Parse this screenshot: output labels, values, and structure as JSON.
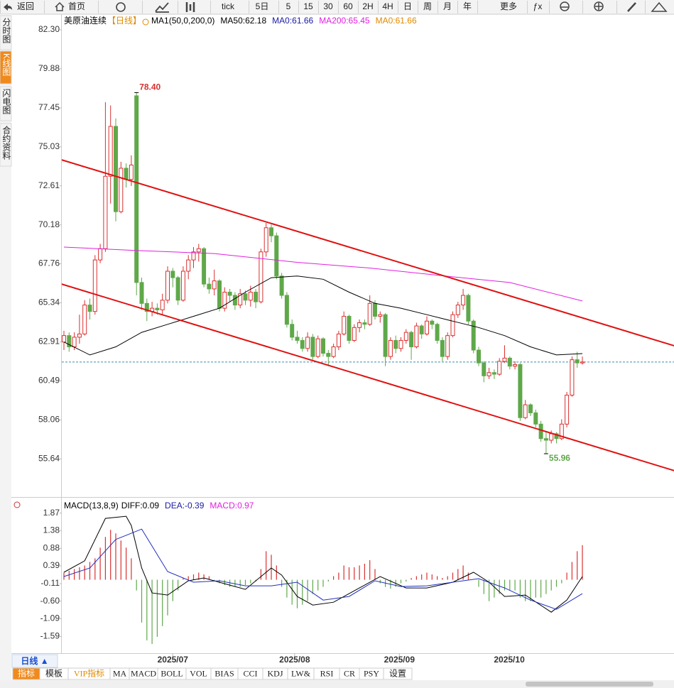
{
  "toolbar": {
    "buttons": [
      "返回",
      "首页",
      "tick",
      "5日",
      "5",
      "15",
      "30",
      "60",
      "2H",
      "4H",
      "日",
      "周",
      "月",
      "年",
      "更多",
      "ƒx"
    ]
  },
  "sidebar": {
    "tabs": [
      "分时图",
      "K线图",
      "闪电图",
      "合约资料"
    ],
    "active": 1
  },
  "period_button": "日线 ▲",
  "bottom_tabs": {
    "tabs": [
      "指标",
      "模板",
      "VIP指标",
      "MA",
      "MACD",
      "BOLL",
      "VOL",
      "BIAS",
      "CCI",
      "KDJ",
      "LW&",
      "RSI",
      "CR",
      "PSY",
      "设置"
    ],
    "active": 0,
    "highlight": 2
  },
  "chart_data": [
    {
      "type": "candlestick",
      "title": "美原油连续",
      "period": "【日线】",
      "indicators": [
        {
          "text": "MA1(50,0,200,0)",
          "color": "#000000"
        },
        {
          "text": "MA50:62.18",
          "color": "#000000"
        },
        {
          "text": "MA0:61.66",
          "color": "#1a1aa6"
        },
        {
          "text": "MA200:65.45",
          "color": "#e020e0"
        },
        {
          "text": "MA0:61.66",
          "color": "#e08a00"
        }
      ],
      "ylim": [
        53.27,
        83.27
      ],
      "yticks": [
        {
          "value": 82.3,
          "label": "82.30"
        },
        79.88,
        77.45,
        75.03,
        72.61,
        70.18,
        67.76,
        65.34,
        62.91,
        60.49,
        58.06,
        55.64
      ],
      "up_color": "#d93030",
      "down_color": "#5fa84a",
      "candles": [
        [
          62.9,
          63.6,
          62.4,
          63.3
        ],
        [
          63.3,
          63.5,
          62.3,
          62.6
        ],
        [
          62.6,
          63.5,
          62.4,
          63.2
        ],
        [
          63.2,
          64.6,
          62.8,
          63.4
        ],
        [
          63.4,
          65.5,
          63.3,
          65.2
        ],
        [
          65.2,
          65.6,
          64.3,
          64.8
        ],
        [
          64.8,
          68.3,
          64.6,
          68.0
        ],
        [
          68.0,
          69.0,
          67.8,
          68.7
        ],
        [
          68.7,
          77.8,
          68.5,
          73.2
        ],
        [
          73.2,
          77.6,
          71.5,
          76.3
        ],
        [
          76.3,
          76.8,
          70.4,
          71.0
        ],
        [
          71.0,
          74.1,
          70.9,
          73.7
        ],
        [
          73.7,
          74.0,
          72.5,
          73.0
        ],
        [
          73.0,
          74.5,
          72.6,
          73.9
        ],
        [
          78.2,
          78.4,
          65.8,
          66.6
        ],
        [
          66.6,
          66.9,
          64.9,
          65.3
        ],
        [
          65.3,
          65.6,
          64.2,
          64.8
        ],
        [
          64.8,
          65.4,
          64.5,
          65.0
        ],
        [
          65.0,
          65.3,
          64.6,
          64.9
        ],
        [
          64.9,
          65.9,
          64.6,
          65.5
        ],
        [
          65.5,
          67.6,
          65.3,
          67.3
        ],
        [
          67.3,
          67.5,
          66.3,
          66.9
        ],
        [
          66.9,
          67.0,
          65.2,
          65.5
        ],
        [
          65.5,
          67.6,
          65.4,
          67.3
        ],
        [
          67.3,
          68.3,
          66.8,
          68.0
        ],
        [
          68.0,
          68.8,
          67.5,
          68.5
        ],
        [
          68.5,
          69.0,
          67.9,
          68.7
        ],
        [
          68.7,
          68.8,
          66.3,
          66.5
        ],
        [
          66.5,
          66.9,
          65.9,
          66.2
        ],
        [
          66.2,
          67.4,
          65.8,
          66.7
        ],
        [
          66.7,
          66.8,
          64.8,
          65.0
        ],
        [
          65.0,
          66.3,
          64.8,
          66.0
        ],
        [
          66.0,
          66.2,
          65.4,
          65.8
        ],
        [
          65.8,
          66.0,
          64.9,
          65.2
        ],
        [
          65.2,
          66.2,
          65.0,
          65.9
        ],
        [
          65.9,
          66.1,
          65.2,
          65.5
        ],
        [
          65.5,
          66.4,
          65.1,
          66.0
        ],
        [
          66.0,
          66.2,
          65.0,
          65.4
        ],
        [
          65.4,
          68.7,
          65.3,
          68.5
        ],
        [
          68.5,
          70.3,
          68.2,
          70.0
        ],
        [
          70.0,
          70.2,
          69.1,
          69.5
        ],
        [
          69.5,
          69.7,
          66.8,
          67.0
        ],
        [
          67.0,
          67.2,
          65.6,
          65.8
        ],
        [
          65.8,
          66.0,
          63.8,
          64.0
        ],
        [
          64.0,
          64.3,
          63.0,
          63.2
        ],
        [
          63.2,
          63.6,
          62.8,
          63.0
        ],
        [
          63.0,
          63.2,
          62.3,
          62.5
        ],
        [
          62.5,
          63.5,
          62.3,
          63.2
        ],
        [
          63.2,
          63.4,
          61.8,
          62.0
        ],
        [
          62.0,
          63.3,
          61.9,
          63.1
        ],
        [
          63.1,
          63.2,
          62.0,
          62.2
        ],
        [
          62.2,
          62.4,
          61.4,
          62.0
        ],
        [
          62.0,
          62.8,
          61.9,
          62.6
        ],
        [
          62.6,
          63.6,
          62.4,
          63.4
        ],
        [
          63.4,
          64.8,
          63.3,
          64.5
        ],
        [
          64.5,
          64.6,
          62.8,
          63.0
        ],
        [
          63.0,
          64.0,
          62.9,
          63.8
        ],
        [
          63.8,
          64.3,
          63.5,
          64.1
        ],
        [
          64.1,
          64.3,
          63.7,
          64.0
        ],
        [
          64.0,
          65.8,
          63.9,
          65.3
        ],
        [
          65.3,
          65.5,
          64.3,
          64.5
        ],
        [
          64.5,
          64.8,
          64.1,
          64.6
        ],
        [
          64.6,
          64.7,
          61.4,
          62.0
        ],
        [
          62.0,
          63.2,
          61.8,
          63.0
        ],
        [
          63.0,
          63.3,
          62.2,
          62.5
        ],
        [
          62.5,
          63.2,
          62.3,
          63.0
        ],
        [
          63.0,
          63.7,
          62.8,
          63.5
        ],
        [
          63.5,
          63.6,
          61.8,
          62.6
        ],
        [
          62.6,
          64.1,
          62.5,
          63.9
        ],
        [
          63.9,
          64.0,
          63.1,
          63.4
        ],
        [
          63.4,
          64.5,
          63.3,
          64.2
        ],
        [
          64.2,
          64.3,
          63.7,
          64.0
        ],
        [
          64.0,
          64.1,
          62.8,
          63.0
        ],
        [
          63.0,
          63.2,
          61.7,
          62.0
        ],
        [
          62.0,
          63.5,
          61.8,
          63.3
        ],
        [
          63.3,
          64.8,
          63.2,
          64.6
        ],
        [
          64.6,
          65.4,
          64.4,
          65.2
        ],
        [
          65.2,
          66.2,
          64.9,
          65.8
        ],
        [
          65.8,
          65.9,
          64.0,
          64.2
        ],
        [
          64.2,
          64.3,
          62.2,
          62.4
        ],
        [
          62.4,
          62.6,
          61.4,
          61.6
        ],
        [
          61.6,
          61.7,
          60.4,
          60.8
        ],
        [
          60.8,
          61.3,
          60.6,
          61.0
        ],
        [
          61.0,
          61.2,
          60.6,
          60.9
        ],
        [
          60.9,
          61.9,
          60.8,
          61.7
        ],
        [
          61.7,
          62.7,
          61.6,
          61.9
        ],
        [
          61.9,
          62.0,
          61.2,
          61.4
        ],
        [
          61.4,
          61.7,
          61.2,
          61.5
        ],
        [
          61.5,
          61.6,
          58.0,
          58.2
        ],
        [
          58.2,
          59.3,
          58.1,
          59.0
        ],
        [
          59.0,
          59.1,
          58.3,
          58.5
        ],
        [
          58.5,
          58.7,
          57.6,
          57.8
        ],
        [
          57.8,
          58.0,
          56.7,
          56.9
        ],
        [
          56.9,
          57.3,
          55.96,
          56.8
        ],
        [
          56.8,
          57.4,
          56.6,
          57.2
        ],
        [
          57.2,
          57.3,
          56.6,
          56.9
        ],
        [
          56.9,
          58.1,
          56.8,
          57.8
        ],
        [
          57.8,
          59.8,
          57.6,
          59.6
        ],
        [
          59.6,
          62.0,
          59.5,
          61.8
        ],
        [
          61.8,
          62.3,
          61.3,
          61.6
        ],
        [
          61.6,
          62.0,
          61.5,
          61.66
        ]
      ],
      "overlays": [
        {
          "color": "#000000",
          "x": [
            0,
            5,
            10,
            15,
            20,
            25,
            30,
            35,
            40,
            45,
            50,
            55,
            60,
            65,
            70,
            75,
            80,
            85,
            90,
            95,
            100
          ],
          "values": [
            62.9,
            62.1,
            62.6,
            63.5,
            64.0,
            64.5,
            65.0,
            66.0,
            66.9,
            67.0,
            66.8,
            66.0,
            65.3,
            65.0,
            64.6,
            64.2,
            63.8,
            63.3,
            62.6,
            62.1,
            62.18
          ]
        },
        {
          "color": "#e020e0",
          "x": [
            0,
            13,
            29,
            45,
            59,
            75,
            86,
            100
          ],
          "values": [
            68.8,
            68.6,
            68.4,
            67.85,
            67.5,
            66.95,
            66.6,
            65.45
          ]
        }
      ],
      "channel": {
        "color": "#e01010",
        "lines": [
          {
            "x": [
              -0.55,
              117.7
            ],
            "values": [
              74.23,
              62.67
            ]
          },
          {
            "x": [
              -0.55,
              117.7
            ],
            "values": [
              66.51,
              54.91
            ]
          }
        ]
      },
      "last_price": {
        "value": 61.66,
        "color": "#3a8fb0"
      },
      "annotations": [
        {
          "at": 14,
          "value": 78.4,
          "label": "78.40",
          "color": "#d93030"
        },
        {
          "at": 93,
          "value": 55.96,
          "label": "55.96",
          "color": "#5fa84a"
        }
      ]
    },
    {
      "type": "macd",
      "title": "MACD(13,8,9)",
      "indicators": [
        {
          "text": "DIFF:0.09",
          "color": "#000000"
        },
        {
          "text": "DEA:-0.39",
          "color": "#1a1aa6"
        },
        {
          "text": "MACD:0.97",
          "color": "#e020e0"
        }
      ],
      "ylim": [
        -1.96,
        2.22
      ],
      "yticks": [
        1.87,
        1.38,
        0.88,
        0.39,
        -0.11,
        {
          "value": -0.6,
          "label": "-0.60"
        },
        -1.09,
        -1.59
      ],
      "up_color": "#d93030",
      "down_color": "#5fa84a",
      "histogram": [
        0.2,
        0.25,
        0.3,
        0.35,
        0.4,
        0.5,
        0.6,
        0.9,
        1.2,
        1.4,
        1.3,
        1.1,
        0.9,
        0.6,
        -0.3,
        -1.2,
        -1.7,
        -1.8,
        -1.6,
        -1.3,
        -1.0,
        -0.6,
        -0.3,
        0.05,
        0.1,
        0.15,
        0.2,
        0.15,
        0.1,
        -0.05,
        -0.1,
        -0.15,
        -0.2,
        -0.2,
        -0.2,
        -0.15,
        -0.1,
        -0.05,
        0.3,
        0.8,
        0.7,
        0.4,
        -0.2,
        -0.5,
        -0.7,
        -0.8,
        -0.7,
        -0.6,
        -0.4,
        -0.3,
        -0.2,
        -0.05,
        0.1,
        0.2,
        0.4,
        0.35,
        0.35,
        0.4,
        0.45,
        0.55,
        0.3,
        -0.1,
        -0.2,
        -0.25,
        -0.2,
        -0.1,
        -0.05,
        0.05,
        0.1,
        0.15,
        0.2,
        0.15,
        0.1,
        0.05,
        0.1,
        0.2,
        0.3,
        0.4,
        0.2,
        0.0,
        -0.2,
        -0.4,
        -0.6,
        -0.5,
        -0.4,
        -0.3,
        -0.3,
        -0.3,
        -0.5,
        -0.6,
        -0.6,
        -0.5,
        -0.5,
        -0.4,
        -0.3,
        -0.2,
        -0.1,
        0.2,
        0.5,
        0.8,
        0.97
      ],
      "series": [
        {
          "color": "#000000",
          "x": [
            0,
            4,
            8,
            12,
            13,
            15,
            17,
            20,
            24,
            27,
            31,
            35,
            40,
            42,
            45,
            48,
            52,
            56,
            61,
            66,
            70,
            75,
            79,
            82,
            85,
            89,
            94,
            97,
            100
          ],
          "values": [
            0.21,
            0.53,
            1.72,
            1.78,
            1.52,
            0.33,
            -0.37,
            -0.43,
            -0.03,
            0.05,
            -0.11,
            -0.27,
            0.33,
            0.13,
            -0.47,
            -0.71,
            -0.63,
            -0.31,
            0.09,
            -0.23,
            -0.23,
            -0.07,
            0.21,
            -0.07,
            -0.47,
            -0.43,
            -0.91,
            -0.57,
            0.09
          ]
        },
        {
          "color": "#2030c0",
          "x": [
            0,
            5,
            10,
            15,
            20,
            25,
            30,
            35,
            40,
            45,
            50,
            55,
            60,
            65,
            70,
            75,
            80,
            85,
            90,
            95,
            100
          ],
          "values": [
            0.09,
            0.33,
            1.13,
            1.42,
            0.23,
            -0.07,
            -0.03,
            -0.17,
            -0.17,
            -0.07,
            -0.57,
            -0.47,
            -0.03,
            -0.19,
            -0.17,
            -0.07,
            0.03,
            -0.23,
            -0.57,
            -0.83,
            -0.39
          ]
        }
      ],
      "x_labels": [
        {
          "label": "2025/07",
          "at": 21
        },
        {
          "label": "2025/08",
          "at": 44.5
        },
        {
          "label": "2025/09",
          "at": 64.7
        },
        {
          "label": "2025/10",
          "at": 85.9
        }
      ]
    }
  ]
}
